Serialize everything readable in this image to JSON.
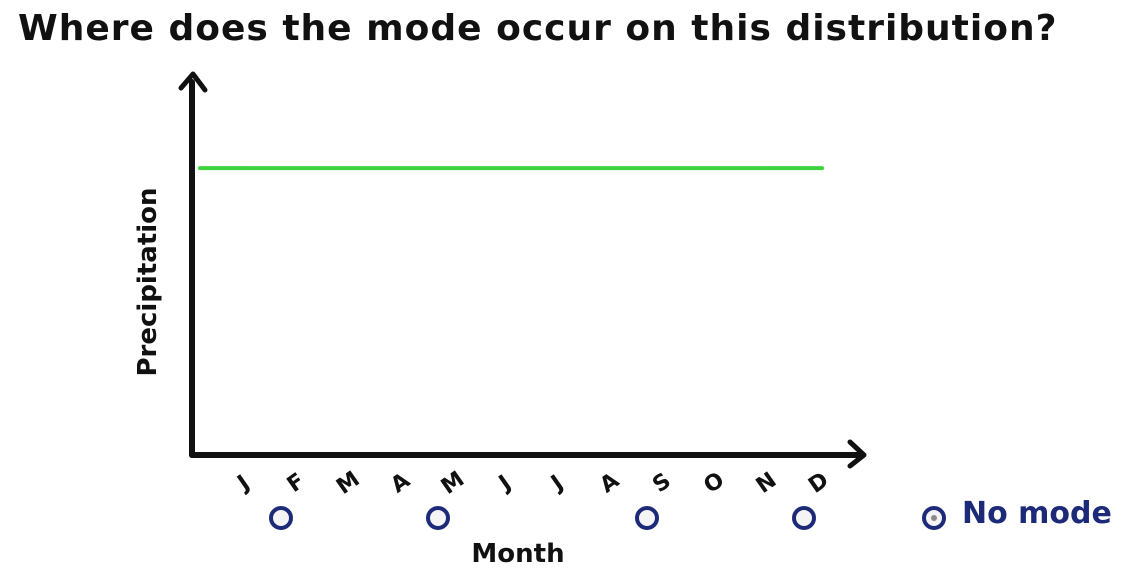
{
  "question": "Where does the mode occur on this distribution?",
  "chart_data": {
    "type": "line",
    "xlabel": "Month",
    "ylabel": "Precipitation",
    "categories": [
      "J",
      "F",
      "M",
      "A",
      "M",
      "J",
      "J",
      "A",
      "S",
      "O",
      "N",
      "D"
    ],
    "series": [
      {
        "values": [
          1,
          1,
          1,
          1,
          1,
          1,
          1,
          1,
          1,
          1,
          1,
          1
        ]
      }
    ],
    "ylim": [
      0,
      1.3
    ],
    "grid": false,
    "line_color": "#3fd33f",
    "axis_color": "#111111"
  },
  "answer_options": {
    "month_radio_positions": [
      1,
      4,
      8,
      11
    ],
    "no_mode_label": "No mode",
    "selected": "no_mode",
    "radio_color": "#1c2a78"
  }
}
